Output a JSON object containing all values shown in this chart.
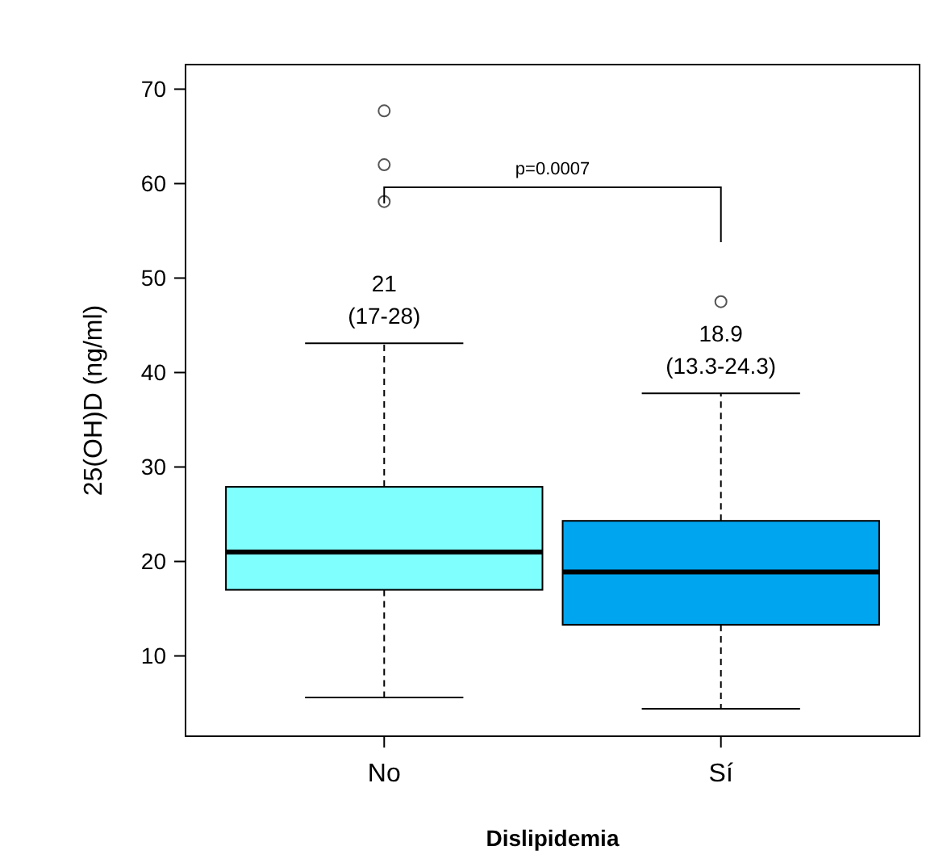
{
  "chart_data": {
    "type": "box",
    "xlabel": "Dislipidemia",
    "ylabel": "25(OH)D (ng/ml)",
    "categories": [
      "No",
      "Sí"
    ],
    "colors": [
      "#80ffff",
      "#00a5ef"
    ],
    "boxes": [
      {
        "low": 5.6,
        "q1": 17,
        "median": 21,
        "q3": 27.9,
        "high": 43.1,
        "outliers": [
          67.7,
          62,
          58.1
        ]
      },
      {
        "low": 4.4,
        "q1": 13.3,
        "median": 18.9,
        "q3": 24.3,
        "high": 37.8,
        "outliers": [
          47.5
        ]
      }
    ],
    "ylim": [
      1.5,
      72.6
    ],
    "yticks": [
      10,
      20,
      30,
      40,
      50,
      60,
      70
    ],
    "grid": false,
    "annotations": [
      {
        "text": "21\n(17-28)",
        "x": "No",
        "y": 43.1
      },
      {
        "text": "18.9\n(13.3-24.3)",
        "x": "Sí",
        "y": 37.8
      },
      "p=0.0007"
    ]
  }
}
